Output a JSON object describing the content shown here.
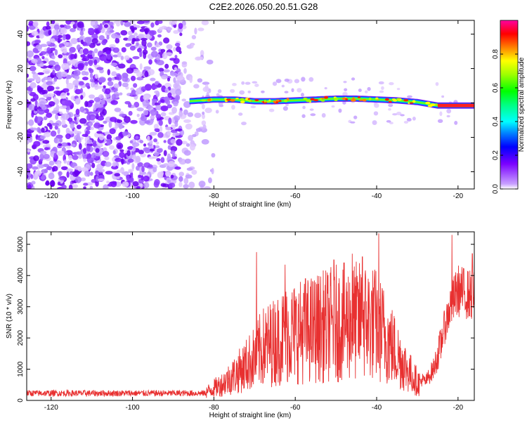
{
  "title": "C2E2.2026.050.20.51.G28",
  "chart_data": [
    {
      "type": "heatmap",
      "name": "spectrogram",
      "xlabel": "Height of straight line (km)",
      "ylabel": "Frequency (Hz)",
      "xlim": [
        -126,
        -16
      ],
      "ylim": [
        -50,
        48
      ],
      "xticks": [
        -120,
        -100,
        -80,
        -60,
        -40,
        -20
      ],
      "yticks": [
        -40,
        -20,
        0,
        20,
        40
      ],
      "noise_region_x": [
        -126,
        -80
      ],
      "ridge": {
        "x": [
          -86,
          -80,
          -75,
          -70,
          -65,
          -60,
          -55,
          -50,
          -45,
          -40,
          -35,
          -30,
          -25,
          -20,
          -16
        ],
        "freq": [
          1,
          2,
          2,
          1,
          1,
          1.5,
          2,
          2.5,
          2.5,
          2,
          1.5,
          0.5,
          -1.5,
          -1.5,
          -1.5
        ]
      },
      "colorbar": {
        "label": "Normalized spectral amplitude",
        "range": [
          0,
          1
        ],
        "ticks": [
          "0.0",
          "0.2",
          "0.4",
          "0.6",
          "0.8"
        ],
        "tick_values": [
          0,
          0.2,
          0.4,
          0.6,
          0.8
        ]
      }
    },
    {
      "type": "line",
      "name": "snr",
      "xlabel": "Height of straight line (km)",
      "ylabel": "SNR (10 * v/v)",
      "xlim": [
        -126,
        -16
      ],
      "ylim": [
        0,
        5400
      ],
      "xticks": [
        -120,
        -100,
        -80,
        -60,
        -40,
        -20
      ],
      "yticks": [
        0,
        1000,
        2000,
        3000,
        4000,
        5000
      ],
      "color": "#e83030",
      "series": [
        {
          "name": "SNR envelope",
          "x": [
            -126,
            -100,
            -86,
            -82,
            -78,
            -74,
            -70,
            -68,
            -64,
            -62,
            -58,
            -54,
            -50,
            -46,
            -42,
            -40,
            -38,
            -36,
            -34,
            -32,
            -30,
            -28,
            -26,
            -24,
            -22,
            -20,
            -18,
            -16
          ],
          "values": [
            230,
            230,
            260,
            400,
            800,
            1400,
            2100,
            2600,
            3000,
            3300,
            3400,
            3600,
            3800,
            3900,
            3900,
            3700,
            3200,
            2600,
            2000,
            1400,
            900,
            700,
            1200,
            2200,
            3200,
            3800,
            3700,
            3600
          ]
        }
      ],
      "peaks": [
        {
          "x": -69.5,
          "y": 4750
        },
        {
          "x": -62.5,
          "y": 4350
        },
        {
          "x": -57.5,
          "y": 3900
        },
        {
          "x": -50.5,
          "y": 4500
        },
        {
          "x": -46,
          "y": 4700
        },
        {
          "x": -43.5,
          "y": 4600
        },
        {
          "x": -39.5,
          "y": 5350
        },
        {
          "x": -21.5,
          "y": 5300
        },
        {
          "x": -16.5,
          "y": 4700
        }
      ]
    }
  ]
}
